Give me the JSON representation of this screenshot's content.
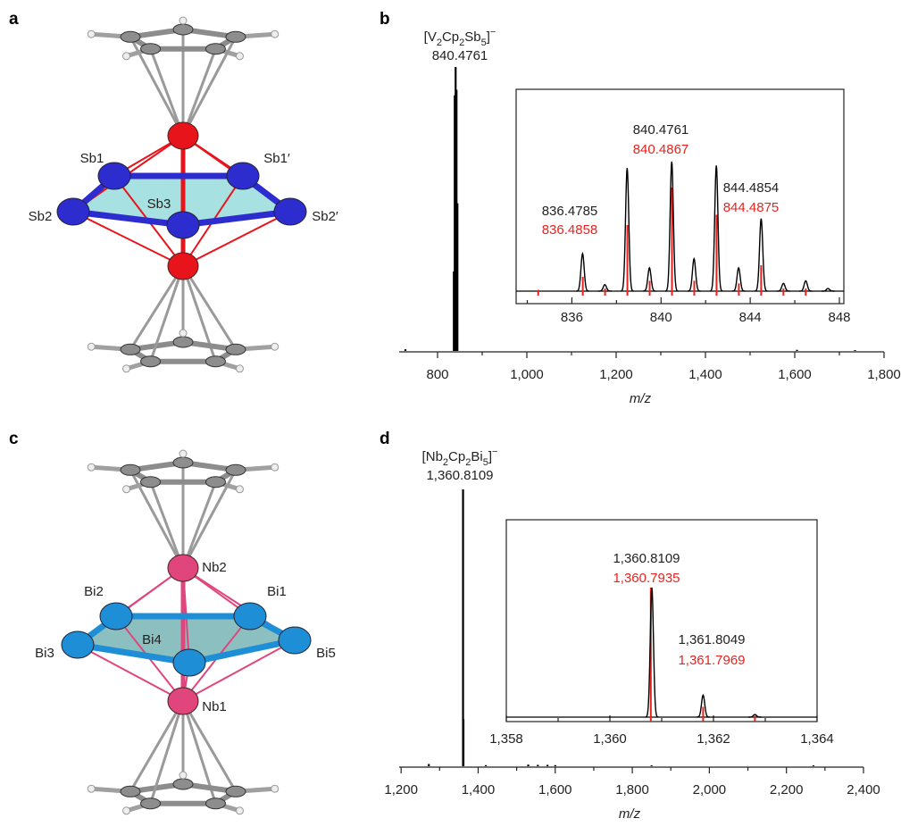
{
  "chart_data": [
    {
      "type": "stem",
      "panel": "b",
      "title": "[V2Cp2Sb5]−",
      "subtitle": "840.4761",
      "x": [
        728,
        836.48,
        838.48,
        840.48,
        842.48,
        844.49,
        1605,
        1735
      ],
      "values": [
        0.6,
        28,
        90,
        100,
        92,
        52,
        0.4,
        0.3
      ],
      "color": "#000000",
      "xlim": [
        714,
        1800
      ],
      "xticks": [
        800,
        {
          "value": 1000,
          "label": "1,000"
        },
        {
          "value": 1200,
          "label": "1,200"
        },
        {
          "value": 1400,
          "label": "1,400"
        },
        {
          "value": 1600,
          "label": "1,600"
        },
        {
          "value": 1800,
          "label": "1,800"
        }
      ],
      "xminor": [
        900,
        1100,
        1300,
        1500,
        1700
      ],
      "xlabel": "m/z"
    },
    {
      "type": "spectrum",
      "xlim": [
        833.5,
        848.2
      ],
      "xticks": [
        836,
        840,
        844,
        848
      ],
      "xminor": [
        834,
        838,
        842,
        846
      ],
      "series": [
        {
          "color": "#000000",
          "x": [
            836.48,
            837.48,
            838.48,
            839.48,
            840.48,
            841.48,
            842.48,
            843.48,
            844.49,
            845.49,
            846.49,
            847.49
          ],
          "values": [
            29,
            5,
            95,
            18,
            100,
            25,
            97,
            18,
            56,
            6,
            8,
            2
          ]
        },
        {
          "color": "#e8231f",
          "x": [
            834.49,
            836.49,
            837.49,
            838.49,
            839.49,
            840.49,
            841.49,
            842.49,
            843.49,
            844.49,
            845.49,
            846.49
          ],
          "values": [
            1,
            11,
            2,
            51,
            8,
            80,
            8,
            59,
            6,
            20,
            2,
            2
          ]
        }
      ],
      "annotations": [
        {
          "text": "836.4785",
          "color": "#222222"
        },
        {
          "text": "836.4858",
          "color": "#e8231f"
        },
        {
          "text": "840.4761",
          "color": "#222222"
        },
        {
          "text": "840.4867",
          "color": "#e8231f"
        },
        {
          "text": "844.4854",
          "color": "#222222"
        },
        {
          "text": "844.4875",
          "color": "#e8231f"
        }
      ]
    },
    {
      "type": "stem",
      "panel": "d",
      "title": "[Nb2Cp2Bi5]−",
      "subtitle": "1,360.8109",
      "x": [
        1272,
        1360.81,
        1361.8,
        1420,
        1530,
        1555,
        1580,
        1600,
        1850,
        2270
      ],
      "values": [
        0.8,
        100,
        17,
        0.4,
        0.6,
        0.5,
        0.5,
        0.4,
        0.3,
        0.3
      ],
      "color": "#000000",
      "xlim": [
        1195,
        2400
      ],
      "xticks": [
        {
          "value": 1200,
          "label": "1,200"
        },
        {
          "value": 1400,
          "label": "1,400"
        },
        {
          "value": 1600,
          "label": "1,600"
        },
        {
          "value": 1800,
          "label": "1,800"
        },
        {
          "value": 2000,
          "label": "2,000"
        },
        {
          "value": 2200,
          "label": "2,200"
        },
        {
          "value": 2400,
          "label": "2,400"
        }
      ],
      "xminor": [
        1300,
        1500,
        1700,
        1900,
        2100,
        2300
      ],
      "xlabel": "m/z"
    },
    {
      "type": "spectrum",
      "xlim": [
        1358,
        1364
      ],
      "xticks": [
        {
          "value": 1358,
          "label": "1,358"
        },
        {
          "value": 1360,
          "label": "1,360"
        },
        {
          "value": 1362,
          "label": "1,362"
        },
        {
          "value": 1364,
          "label": "1,364"
        }
      ],
      "xminor": [
        1359,
        1361,
        1363
      ],
      "series": [
        {
          "color": "#000000",
          "x": [
            1360.81,
            1361.8,
            1362.8
          ],
          "values": [
            100,
            17,
            2
          ]
        },
        {
          "color": "#e8231f",
          "x": [
            1360.79,
            1361.8,
            1362.8
          ],
          "values": [
            100,
            8,
            1
          ]
        }
      ],
      "annotations": [
        {
          "text": "1,360.8109",
          "color": "#222222"
        },
        {
          "text": "1,360.7935",
          "color": "#e8231f"
        },
        {
          "text": "1,361.8049",
          "color": "#222222"
        },
        {
          "text": "1,361.7969",
          "color": "#e8231f"
        }
      ]
    }
  ],
  "structures": [
    {
      "panel": "a",
      "atoms": [
        "Sb1",
        "Sb1′",
        "Sb2",
        "Sb3",
        "Sb2′"
      ]
    },
    {
      "panel": "c",
      "atoms": [
        "Nb2",
        "Bi2",
        "Bi1",
        "Bi3",
        "Bi4",
        "Bi5",
        "Nb1"
      ]
    }
  ]
}
